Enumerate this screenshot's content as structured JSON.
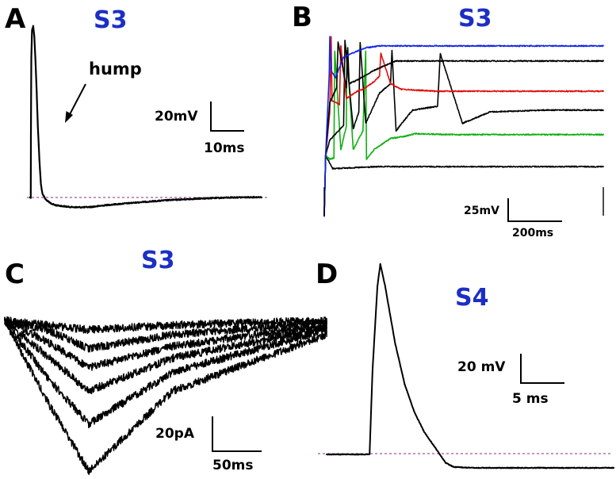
{
  "colors": {
    "title": "#1c2fc4",
    "baseline": "#8a2a8a",
    "black": "#000000",
    "blue": "#1226e6",
    "red": "#e01010",
    "green": "#10b010"
  },
  "panels": {
    "A": {
      "letter": "A",
      "title": "S3",
      "annotation": "hump",
      "scale_y": "20mV",
      "scale_x": "10ms"
    },
    "B": {
      "letter": "B",
      "title": "S3",
      "scale_y": "25mV",
      "scale_x": "200ms"
    },
    "C": {
      "letter": "C",
      "title": "S3",
      "scale_y": "20pA",
      "scale_x": "50ms"
    },
    "D": {
      "letter": "D",
      "title": "S4",
      "scale_y": "20 mV",
      "scale_x": "5 ms"
    }
  },
  "chart_data": [
    {
      "panel": "A",
      "type": "line",
      "title": "S3",
      "scale_bar": {
        "y_value": 20,
        "y_unit": "mV",
        "x_value": 10,
        "x_unit": "ms"
      },
      "annotation": "hump",
      "series": [
        {
          "color": "#000000",
          "x": [
            0,
            0.8,
            1,
            1.5,
            2.5,
            4,
            5.5,
            7,
            8.5,
            10,
            12,
            14,
            16,
            20,
            26,
            32,
            40,
            50,
            60,
            70,
            80,
            90,
            100,
            120,
            140,
            160,
            180,
            200,
            220,
            240,
            260,
            280,
            300
          ],
          "y": [
            0,
            0,
            30,
            74,
            89,
            91,
            85,
            72,
            56,
            38,
            20,
            7,
            2,
            -1,
            -3,
            -4,
            -4.5,
            -5,
            -5.2,
            -5.2,
            -5,
            -4.5,
            -4,
            -3.3,
            -2.6,
            -2,
            -1.4,
            -1,
            -0.6,
            -0.3,
            0,
            0.1,
            0.2
          ]
        }
      ]
    },
    {
      "panel": "B",
      "type": "line",
      "title": "S3",
      "scale_bar": {
        "y_value": 25,
        "y_unit": "mV",
        "x_value": 200,
        "x_unit": "ms"
      },
      "series": [
        {
          "color": "#000000",
          "x": [
            0,
            5,
            30,
            200,
            400,
            600,
            800,
            1010
          ],
          "y": [
            -50,
            14,
            0,
            2,
            2,
            2,
            2,
            2
          ]
        },
        {
          "color": "#10b010",
          "x": [
            0,
            5,
            20,
            35,
            38,
            60,
            80,
            82,
            105,
            140,
            150,
            153,
            180,
            240,
            290,
            330,
            440,
            600,
            800,
            1010
          ],
          "y": [
            -50,
            14,
            10,
            11,
            125,
            20,
            45,
            125,
            20,
            40,
            125,
            10,
            20,
            32,
            34,
            37,
            36,
            36,
            36,
            36
          ]
        },
        {
          "color": "#000000",
          "x": [
            0,
            5,
            20,
            70,
            75,
            105,
            125,
            130,
            150,
            200,
            240,
            245,
            260,
            300,
            320,
            410,
            420,
            500,
            600,
            800,
            1010
          ],
          "y": [
            -50,
            14,
            30,
            46,
            136,
            42,
            60,
            134,
            48,
            80,
            90,
            125,
            40,
            55,
            62,
            66,
            122,
            48,
            60,
            62,
            62
          ]
        },
        {
          "color": "#e01010",
          "x": [
            0,
            5,
            20,
            25,
            28,
            55,
            60,
            80,
            120,
            140,
            180,
            200,
            205,
            240,
            280,
            400,
            600,
            800,
            1010
          ],
          "y": [
            -50,
            14,
            60,
            140,
            72,
            68,
            130,
            74,
            82,
            84,
            92,
            98,
            122,
            90,
            84,
            82,
            82,
            82,
            82
          ]
        },
        {
          "color": "#000000",
          "x": [
            0,
            5,
            20,
            45,
            50,
            80,
            85,
            90,
            120,
            180,
            210,
            260,
            300,
            400,
            600,
            800,
            1010
          ],
          "y": [
            -50,
            14,
            70,
            86,
            134,
            86,
            128,
            90,
            94,
            104,
            108,
            114,
            114,
            114,
            114,
            114,
            114
          ]
        },
        {
          "color": "#1226e6",
          "x": [
            0,
            5,
            18,
            20,
            25,
            40,
            70,
            100,
            150,
            200,
            300,
            600,
            1010
          ],
          "y": [
            -50,
            14,
            100,
            140,
            104,
            96,
            118,
            122,
            128,
            130,
            130,
            130,
            130
          ]
        }
      ]
    },
    {
      "panel": "C",
      "type": "line",
      "title": "S3",
      "scale_bar": {
        "y_value": 20,
        "y_unit": "pA",
        "x_value": 50,
        "x_unit": "ms"
      },
      "series": [
        {
          "color": "#000000",
          "x": [
            0,
            30,
            60,
            120,
            230
          ],
          "y": [
            0,
            -2,
            -4,
            -2,
            0
          ]
        },
        {
          "color": "#000000",
          "x": [
            0,
            30,
            60,
            120,
            230
          ],
          "y": [
            0,
            -4,
            -12,
            -6,
            -1
          ]
        },
        {
          "color": "#000000",
          "x": [
            0,
            30,
            60,
            120,
            230
          ],
          "y": [
            0,
            -9,
            -20,
            -11,
            -2
          ]
        },
        {
          "color": "#000000",
          "x": [
            0,
            30,
            60,
            120,
            230
          ],
          "y": [
            0,
            -15,
            -30,
            -16,
            -3
          ]
        },
        {
          "color": "#000000",
          "x": [
            0,
            30,
            60,
            120,
            230
          ],
          "y": [
            0,
            -24,
            -44,
            -22,
            -4
          ]
        },
        {
          "color": "#000000",
          "x": [
            0,
            30,
            60,
            120,
            230
          ],
          "y": [
            0,
            -34,
            -64,
            -30,
            -6
          ]
        }
      ]
    },
    {
      "panel": "D",
      "type": "line",
      "title": "S4",
      "scale_bar": {
        "y_value": 20,
        "y_unit": "mV",
        "x_value": 5,
        "x_unit": "ms"
      },
      "series": [
        {
          "color": "#000000",
          "x": [
            0,
            2.2,
            2.35,
            2.6,
            2.75,
            3.0,
            3.5,
            4.0,
            4.5,
            5.0,
            5.5,
            5.8,
            6.1,
            6.5,
            7.5,
            9,
            11,
            13,
            14.7
          ],
          "y": [
            0,
            0,
            30,
            60,
            68,
            60,
            40,
            25,
            15,
            8,
            3,
            0,
            -3,
            -4.5,
            -4.8,
            -4.8,
            -4.8,
            -4.8,
            -4.8
          ]
        }
      ]
    }
  ]
}
